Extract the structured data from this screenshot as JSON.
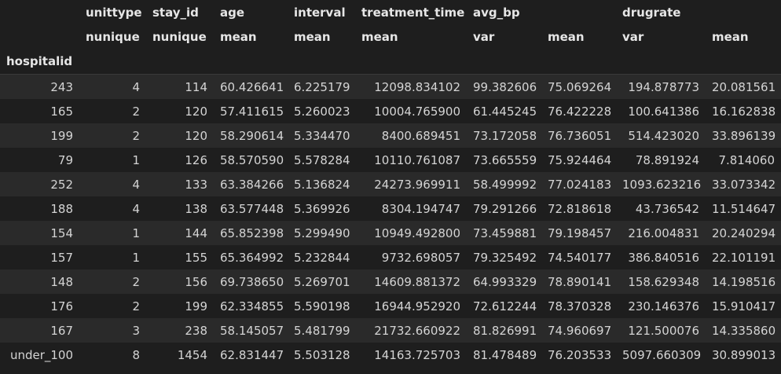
{
  "table": {
    "col_groups": [
      "unittype",
      "stay_id",
      "age",
      "interval",
      "treatment_time",
      "avg_bp",
      "drugrate"
    ],
    "col_stats": [
      "nunique",
      "nunique",
      "mean",
      "mean",
      "mean",
      "var",
      "mean",
      "var",
      "mean"
    ],
    "index_name": "hospitalid",
    "rows": [
      [
        "243",
        "4",
        "114",
        "60.426641",
        "6.225179",
        "12098.834102",
        "99.382606",
        "75.069264",
        "194.878773",
        "20.081561"
      ],
      [
        "165",
        "2",
        "120",
        "57.411615",
        "5.260023",
        "10004.765900",
        "61.445245",
        "76.422228",
        "100.641386",
        "16.162838"
      ],
      [
        "199",
        "2",
        "120",
        "58.290614",
        "5.334470",
        "8400.689451",
        "73.172058",
        "76.736051",
        "514.423020",
        "33.896139"
      ],
      [
        "79",
        "1",
        "126",
        "58.570590",
        "5.578284",
        "10110.761087",
        "73.665559",
        "75.924464",
        "78.891924",
        "7.814060"
      ],
      [
        "252",
        "4",
        "133",
        "63.384266",
        "5.136824",
        "24273.969911",
        "58.499992",
        "77.024183",
        "1093.623216",
        "33.073342"
      ],
      [
        "188",
        "4",
        "138",
        "63.577448",
        "5.369926",
        "8304.194747",
        "79.291266",
        "72.818618",
        "43.736542",
        "11.514647"
      ],
      [
        "154",
        "1",
        "144",
        "65.852398",
        "5.299490",
        "10949.492800",
        "73.459881",
        "79.198457",
        "216.004831",
        "20.240294"
      ],
      [
        "157",
        "1",
        "155",
        "65.364992",
        "5.232844",
        "9732.698057",
        "79.325492",
        "74.540177",
        "386.840516",
        "22.101191"
      ],
      [
        "148",
        "2",
        "156",
        "69.738650",
        "5.269701",
        "14609.881372",
        "64.993329",
        "78.890141",
        "158.629348",
        "14.198516"
      ],
      [
        "176",
        "2",
        "199",
        "62.334855",
        "5.590198",
        "16944.952920",
        "72.612244",
        "78.370328",
        "230.146376",
        "15.910417"
      ],
      [
        "167",
        "3",
        "238",
        "58.145057",
        "5.481799",
        "21732.660922",
        "81.826991",
        "74.960697",
        "121.500076",
        "14.335860"
      ],
      [
        "under_100",
        "8",
        "1454",
        "62.831447",
        "5.503128",
        "14163.725703",
        "81.478489",
        "76.203533",
        "5097.660309",
        "30.899013"
      ]
    ]
  }
}
